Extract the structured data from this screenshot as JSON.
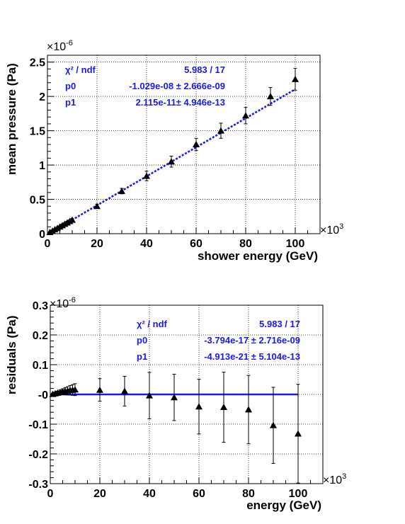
{
  "chart_data": [
    {
      "type": "scatter",
      "xlabel": "shower energy (GeV)",
      "ylabel": "mean pressure (Pa)",
      "x_multiplier": "×10",
      "x_multiplier_exp": "3",
      "y_multiplier": "×10",
      "y_multiplier_exp": "-6",
      "xlim": [
        0,
        110
      ],
      "ylim": [
        0,
        2.6
      ],
      "x_ticks": [
        0,
        20,
        40,
        60,
        80,
        100
      ],
      "x_tick_labels": [
        "0",
        "20",
        "40",
        "60",
        "80",
        "100"
      ],
      "y_ticks": [
        0,
        0.5,
        1,
        1.5,
        2,
        2.5
      ],
      "y_tick_labels": [
        "0",
        "0.5",
        "1",
        "1.5",
        "2",
        "2.5"
      ],
      "grid": true,
      "series": [
        {
          "x": [
            1,
            2,
            3,
            4,
            5,
            6,
            7,
            8,
            9,
            10,
            20,
            30,
            40,
            50,
            60,
            70,
            80,
            90,
            100
          ],
          "y": [
            0.02,
            0.04,
            0.06,
            0.08,
            0.1,
            0.12,
            0.14,
            0.16,
            0.18,
            0.2,
            0.4,
            0.62,
            0.84,
            1.05,
            1.3,
            1.5,
            1.72,
            2.0,
            2.25
          ],
          "err": [
            0.01,
            0.01,
            0.01,
            0.01,
            0.01,
            0.02,
            0.02,
            0.02,
            0.02,
            0.02,
            0.03,
            0.04,
            0.07,
            0.08,
            0.09,
            0.11,
            0.12,
            0.13,
            0.16
          ]
        }
      ],
      "fit": {
        "intercept": -0.01029,
        "slope": 0.02115
      },
      "stats": {
        "rows": [
          {
            "label": "χ² / ndf",
            "value": "5.983 / 17"
          },
          {
            "label": "p0",
            "value": "-1.029e-08 ± 2.666e-09"
          },
          {
            "label": "p1",
            "value": "2.115e-11± 4.946e-13"
          }
        ]
      }
    },
    {
      "type": "scatter",
      "xlabel": "energy (GeV)",
      "ylabel": "residuals (Pa)",
      "x_multiplier": "×10",
      "x_multiplier_exp": "3",
      "y_multiplier": "×10",
      "y_multiplier_exp": "-6",
      "xlim": [
        0,
        110
      ],
      "ylim": [
        -0.3,
        0.3
      ],
      "x_ticks": [
        0,
        20,
        40,
        60,
        80,
        100
      ],
      "x_tick_labels": [
        "0",
        "20",
        "40",
        "60",
        "80",
        "100"
      ],
      "y_ticks": [
        -0.3,
        -0.2,
        -0.1,
        0,
        0.1,
        0.2,
        0.3
      ],
      "y_tick_labels": [
        "-0.3",
        "-0.2",
        "-0.1",
        "-0",
        "0.1",
        "0.2",
        "0.3"
      ],
      "grid": true,
      "series": [
        {
          "x": [
            1,
            2,
            3,
            4,
            5,
            6,
            7,
            8,
            9,
            10,
            20,
            30,
            40,
            50,
            60,
            70,
            80,
            90,
            100
          ],
          "y": [
            0.001,
            0.003,
            0.005,
            0.007,
            0.009,
            0.011,
            0.012,
            0.014,
            0.015,
            0.016,
            0.015,
            0.011,
            -0.004,
            -0.01,
            -0.041,
            -0.043,
            -0.051,
            -0.104,
            -0.132
          ],
          "err": [
            0.003,
            0.004,
            0.006,
            0.008,
            0.01,
            0.012,
            0.014,
            0.016,
            0.018,
            0.02,
            0.038,
            0.05,
            0.078,
            0.078,
            0.092,
            0.118,
            0.115,
            0.128,
            0.166
          ]
        }
      ],
      "fit": {
        "intercept": 0,
        "slope": 0
      },
      "stats": {
        "rows": [
          {
            "label": "χ² / ndf",
            "value": "5.983 / 17"
          },
          {
            "label": "p0",
            "value": "-3.794e-17 ± 2.716e-09"
          },
          {
            "label": "p1",
            "value": "-4.913e-21 ± 5.104e-13"
          }
        ]
      }
    }
  ]
}
